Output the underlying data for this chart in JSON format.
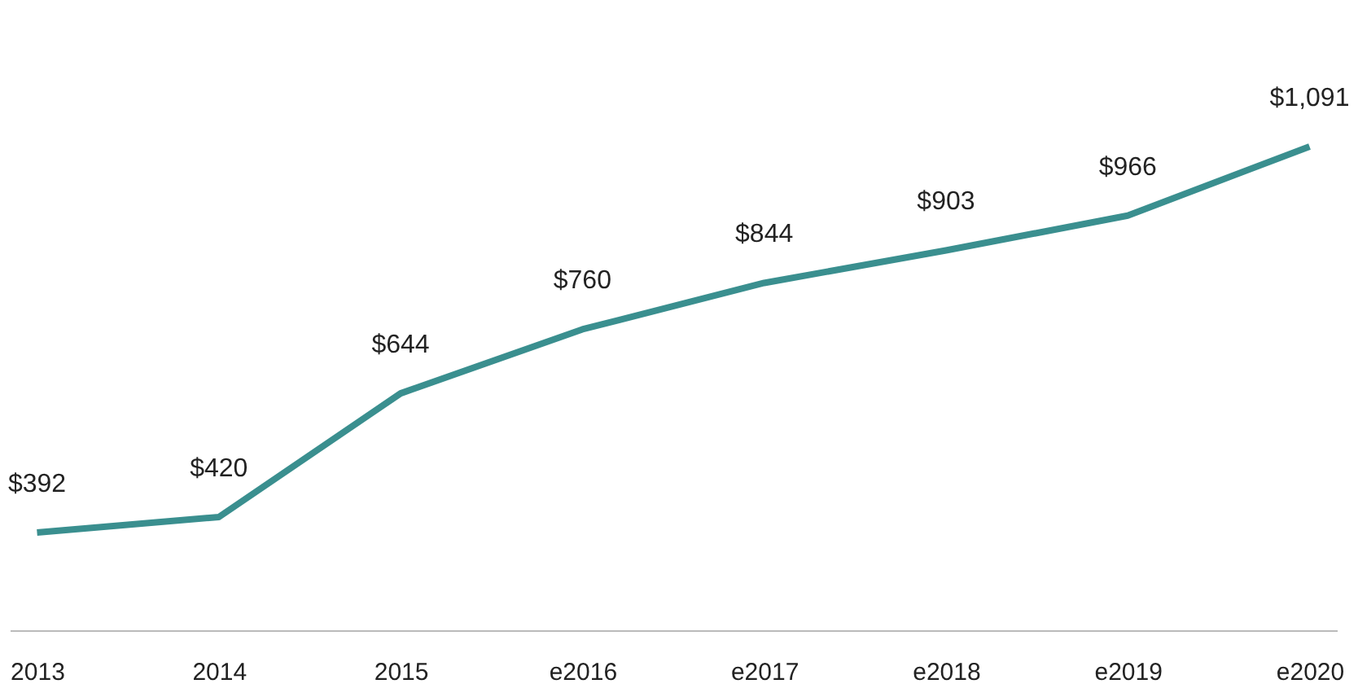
{
  "chart_data": {
    "type": "line",
    "categories": [
      "2013",
      "2014",
      "2015",
      "e2016",
      "e2017",
      "e2018",
      "e2019",
      "e2020"
    ],
    "values": [
      392,
      420,
      644,
      760,
      844,
      903,
      966,
      1091
    ],
    "value_labels": [
      "$392",
      "$420",
      "$644",
      "$760",
      "$844",
      "$903",
      "$966",
      "$1,091"
    ],
    "color": "#3a8f8f",
    "grid": false,
    "marker": "none",
    "line_style": "solid"
  }
}
